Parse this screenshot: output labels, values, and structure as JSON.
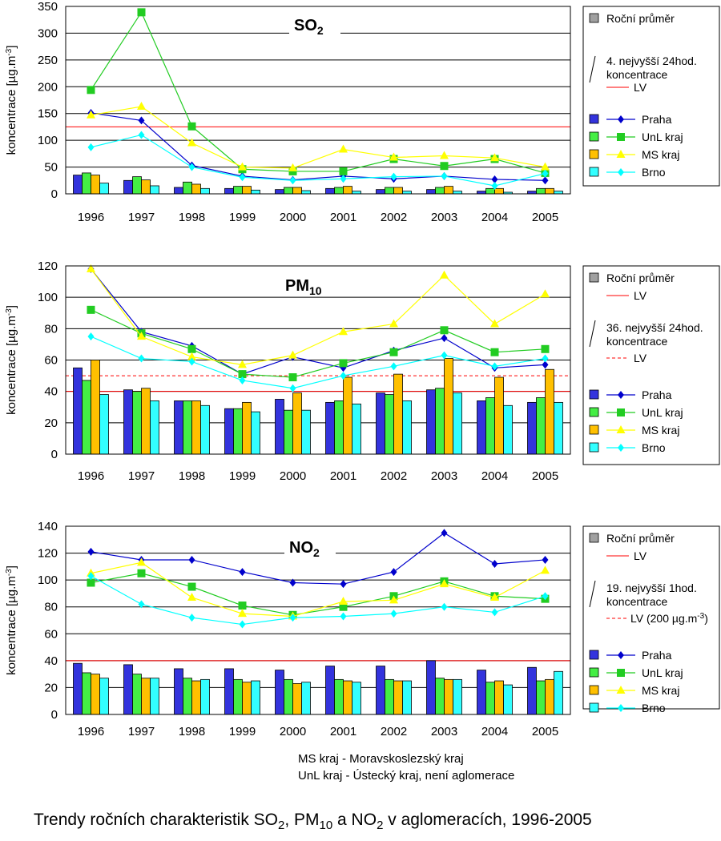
{
  "caption": {
    "text_before": "Trendy ročních charakteristik SO",
    "sub1": "2",
    "text_mid1": ", PM",
    "sub2": "10",
    "text_mid2": " a NO",
    "sub3": "2",
    "text_after": " v aglomeracích, 1996-2005"
  },
  "footnotes": [
    "MS kraj - Moravskoslezský kraj",
    "UnL kraj - Ústecký kraj, není aglomerace"
  ],
  "colors": {
    "Praha_bar": "#3333dd",
    "Praha_line": "#0000cc",
    "UnL_bar": "#44ee44",
    "UnL_line": "#22cc22",
    "MS_bar": "#ffc000",
    "MS_line": "#ffff00",
    "Brno_bar": "#33ffff",
    "Brno_line": "#00ffff",
    "LV": "#ff0000",
    "gray_box": "#a0a0a0"
  },
  "chart_data": [
    {
      "type": "bar",
      "title_main": "SO",
      "title_sub": "2",
      "ylabel": "koncentrace [µg.m-3]",
      "ylabel_main": "koncentrace [µg.m",
      "ylabel_sup": "-3",
      "ylabel_end": "]",
      "ylim": [
        0,
        350
      ],
      "yticks": [
        0,
        50,
        100,
        150,
        200,
        250,
        300,
        350
      ],
      "categories": [
        "1996",
        "1997",
        "1998",
        "1999",
        "2000",
        "2001",
        "2002",
        "2003",
        "2004",
        "2005"
      ],
      "bar_series": [
        {
          "name": "Praha",
          "values": [
            35,
            25,
            12,
            10,
            8,
            10,
            8,
            8,
            5,
            5
          ]
        },
        {
          "name": "UnL kraj",
          "values": [
            39,
            32,
            22,
            14,
            12,
            12,
            12,
            12,
            10,
            10
          ]
        },
        {
          "name": "MS kraj",
          "values": [
            35,
            26,
            18,
            14,
            12,
            14,
            12,
            14,
            10,
            10
          ]
        },
        {
          "name": "Brno",
          "values": [
            20,
            15,
            10,
            7,
            6,
            5,
            5,
            5,
            3,
            5
          ]
        }
      ],
      "line_series": [
        {
          "name": "Praha",
          "values": [
            151,
            137,
            53,
            33,
            26,
            33,
            28,
            33,
            27,
            25
          ]
        },
        {
          "name": "UnL kraj",
          "values": [
            194,
            339,
            126,
            46,
            42,
            42,
            65,
            52,
            65,
            39
          ]
        },
        {
          "name": "MS kraj",
          "values": [
            147,
            163,
            95,
            50,
            48,
            83,
            68,
            71,
            67,
            50
          ]
        },
        {
          "name": "Brno",
          "values": [
            87,
            110,
            50,
            31,
            25,
            28,
            32,
            33,
            15,
            38
          ]
        }
      ],
      "lv_lines": [
        {
          "value": 125,
          "style": "solid"
        }
      ],
      "legend": {
        "annual_label": "Roční průměr",
        "stat_label_1": "4. nejvyšší 24hod.",
        "stat_label_2": "koncentrace",
        "lv_label": "LV"
      }
    },
    {
      "type": "bar",
      "title_main": "PM",
      "title_sub": "10",
      "ylabel": "koncentrace [µg.m-3]",
      "ylabel_main": "koncentrace [µg.m",
      "ylabel_sup": "-3",
      "ylabel_end": "]",
      "ylim": [
        0,
        120
      ],
      "yticks": [
        0,
        20,
        40,
        60,
        80,
        100,
        120
      ],
      "categories": [
        "1996",
        "1997",
        "1998",
        "1999",
        "2000",
        "2001",
        "2002",
        "2003",
        "2004",
        "2005"
      ],
      "bar_series": [
        {
          "name": "Praha",
          "values": [
            55,
            41,
            34,
            29,
            35,
            33,
            39,
            41,
            34,
            33
          ]
        },
        {
          "name": "UnL kraj",
          "values": [
            47,
            40,
            34,
            29,
            28,
            34,
            38,
            42,
            36,
            36
          ]
        },
        {
          "name": "MS kraj",
          "values": [
            60,
            42,
            34,
            33,
            39,
            49,
            51,
            61,
            49,
            54
          ]
        },
        {
          "name": "Brno",
          "values": [
            38,
            34,
            31,
            27,
            28,
            32,
            34,
            39,
            31,
            33
          ]
        }
      ],
      "line_series": [
        {
          "name": "Praha",
          "values": [
            118,
            78,
            69,
            51,
            62,
            55,
            66,
            74,
            55,
            57
          ]
        },
        {
          "name": "UnL kraj",
          "values": [
            92,
            77,
            67,
            51,
            49,
            58,
            65,
            79,
            65,
            67
          ]
        },
        {
          "name": "MS kraj",
          "values": [
            118,
            75,
            62,
            57,
            63,
            78,
            83,
            114,
            83,
            102
          ]
        },
        {
          "name": "Brno",
          "values": [
            75,
            61,
            59,
            47,
            42,
            50,
            56,
            63,
            56,
            61
          ]
        }
      ],
      "lv_lines": [
        {
          "value": 40,
          "style": "solid"
        },
        {
          "value": 50,
          "style": "dashed"
        }
      ],
      "legend": {
        "annual_label": "Roční průměr",
        "lv_label": "LV",
        "stat_label_1": "36. nejvyšší 24hod.",
        "stat_label_2": "koncentrace",
        "lv2_label": "LV"
      }
    },
    {
      "type": "bar",
      "title_main": "NO",
      "title_sub": "2",
      "ylabel": "koncentrace [µg.m-3]",
      "ylabel_main": "koncentrace [µg.m",
      "ylabel_sup": "-3",
      "ylabel_end": "]",
      "ylim": [
        0,
        140
      ],
      "yticks": [
        0,
        20,
        40,
        60,
        80,
        100,
        120,
        140
      ],
      "categories": [
        "1996",
        "1997",
        "1998",
        "1999",
        "2000",
        "2001",
        "2002",
        "2003",
        "2004",
        "2005"
      ],
      "bar_series": [
        {
          "name": "Praha",
          "values": [
            38,
            37,
            34,
            34,
            33,
            36,
            36,
            40,
            33,
            35
          ]
        },
        {
          "name": "UnL kraj",
          "values": [
            31,
            30,
            27,
            26,
            26,
            26,
            26,
            27,
            24,
            25
          ]
        },
        {
          "name": "MS kraj",
          "values": [
            30,
            27,
            25,
            24,
            23,
            25,
            25,
            26,
            25,
            26
          ]
        },
        {
          "name": "Brno",
          "values": [
            27,
            27,
            26,
            25,
            24,
            24,
            25,
            26,
            22,
            32
          ]
        }
      ],
      "line_series": [
        {
          "name": "Praha",
          "values": [
            121,
            115,
            115,
            106,
            98,
            97,
            106,
            135,
            112,
            115
          ]
        },
        {
          "name": "UnL kraj",
          "values": [
            98,
            105,
            95,
            81,
            74,
            80,
            88,
            99,
            88,
            86
          ]
        },
        {
          "name": "MS kraj",
          "values": [
            105,
            113,
            87,
            75,
            73,
            84,
            85,
            97,
            87,
            107
          ]
        },
        {
          "name": "Brno",
          "values": [
            103,
            82,
            72,
            67,
            72,
            73,
            75,
            80,
            76,
            88
          ]
        }
      ],
      "lv_lines": [
        {
          "value": 40,
          "style": "solid"
        }
      ],
      "legend": {
        "annual_label": "Roční průměr",
        "lv_label": "LV",
        "stat_label_1": "19. nejvyšší 1hod.",
        "stat_label_2": "koncentrace",
        "lv2_label": "LV (200 µg.m-3)",
        "lv2_main": "LV (200 µg.m",
        "lv2_sup": "-3",
        "lv2_end": ")"
      }
    }
  ]
}
